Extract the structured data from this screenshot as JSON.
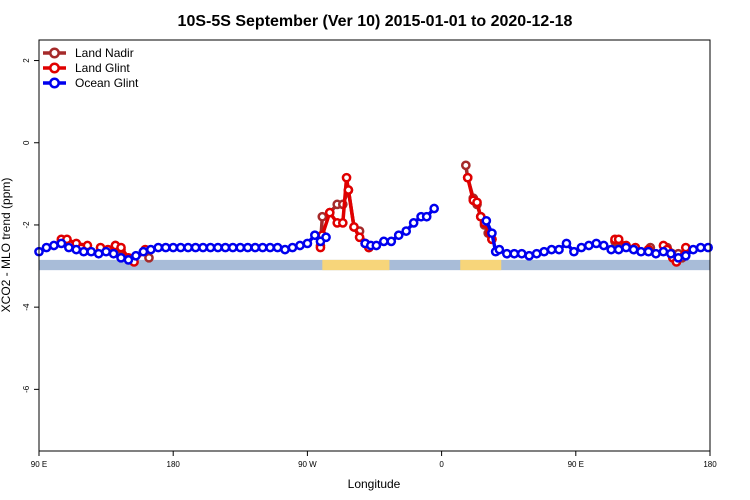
{
  "chart_data": {
    "type": "line",
    "title": "10S-5S September (Ver 10)   2015-01-01 to 2020-12-18",
    "xlabel": "Longitude",
    "ylabel": "XCO2 - MLO trend (ppm)",
    "xlim": [
      -90,
      270
    ],
    "ylim": [
      -7.5,
      2.5
    ],
    "x_ticks": [
      {
        "value": -90,
        "label": "90 E"
      },
      {
        "value": -18,
        "label": "180"
      },
      {
        "value": 54,
        "label": "90 W"
      },
      {
        "value": 126,
        "label": "0"
      },
      {
        "value": 198,
        "label": "90 E"
      },
      {
        "value": 270,
        "label": "180"
      }
    ],
    "y_ticks": [
      {
        "value": 2,
        "label": "2"
      },
      {
        "value": 0,
        "label": "0"
      },
      {
        "value": -2,
        "label": "-2"
      },
      {
        "value": -4,
        "label": "-4"
      },
      {
        "value": -6,
        "label": "-6"
      }
    ],
    "grid": false,
    "legend_position": "top-left",
    "land_strip": {
      "y_top": -2.85,
      "y_bottom": -3.1,
      "ocean_color": "#a8bcd8",
      "land_color": "#f7d57a",
      "land_spans": [
        [
          62,
          98
        ],
        [
          136,
          158
        ]
      ]
    },
    "series": [
      {
        "name": "Land Nadir",
        "color": "#a52a2a",
        "points": [
          [
            -78,
            -2.4
          ],
          [
            -76,
            -2.4
          ],
          [
            -49,
            -2.5
          ],
          [
            -46,
            -2.6
          ],
          [
            -31,
            -2.8
          ],
          [
            61,
            -2.5
          ],
          [
            62,
            -1.8
          ],
          [
            66,
            -1.7
          ],
          [
            70,
            -1.5
          ],
          [
            73,
            -1.5
          ],
          [
            76,
            -1.15
          ],
          [
            79,
            -2.05
          ],
          [
            82,
            -2.15
          ],
          [
            85,
            -2.45
          ],
          [
            87,
            -2.55
          ],
          [
            139,
            -0.55
          ],
          [
            140,
            -0.85
          ],
          [
            143,
            -1.35
          ],
          [
            145,
            -1.5
          ],
          [
            147,
            -1.8
          ],
          [
            149,
            -2.0
          ],
          [
            151,
            -2.2
          ],
          [
            153,
            -2.35
          ],
          [
            219,
            -2.4
          ],
          [
            221,
            -2.4
          ],
          [
            238,
            -2.55
          ],
          [
            247,
            -2.55
          ],
          [
            253,
            -2.7
          ],
          [
            255,
            -2.8
          ]
        ]
      },
      {
        "name": "Land Glint",
        "color": "#e00000",
        "points": [
          [
            -78,
            -2.35
          ],
          [
            -75,
            -2.35
          ],
          [
            -70,
            -2.45
          ],
          [
            -64,
            -2.5
          ],
          [
            -57,
            -2.55
          ],
          [
            -53,
            -2.6
          ],
          [
            -49,
            -2.5
          ],
          [
            -46,
            -2.55
          ],
          [
            -42,
            -2.8
          ],
          [
            -39,
            -2.9
          ],
          [
            -33,
            -2.6
          ],
          [
            61,
            -2.55
          ],
          [
            62,
            -2.25
          ],
          [
            66,
            -1.7
          ],
          [
            70,
            -1.95
          ],
          [
            73,
            -1.95
          ],
          [
            75,
            -0.85
          ],
          [
            76,
            -1.15
          ],
          [
            79,
            -2.05
          ],
          [
            82,
            -2.3
          ],
          [
            85,
            -2.45
          ],
          [
            87,
            -2.55
          ],
          [
            140,
            -0.85
          ],
          [
            143,
            -1.4
          ],
          [
            145,
            -1.45
          ],
          [
            147,
            -1.8
          ],
          [
            149,
            -1.95
          ],
          [
            152,
            -2.2
          ],
          [
            153,
            -2.35
          ],
          [
            219,
            -2.35
          ],
          [
            221,
            -2.35
          ],
          [
            225,
            -2.5
          ],
          [
            230,
            -2.55
          ],
          [
            237,
            -2.6
          ],
          [
            245,
            -2.5
          ],
          [
            247,
            -2.6
          ],
          [
            250,
            -2.8
          ],
          [
            252,
            -2.9
          ],
          [
            257,
            -2.55
          ]
        ]
      },
      {
        "name": "Ocean Glint",
        "color": "#0000ee",
        "points": [
          [
            -90,
            -2.65
          ],
          [
            -86,
            -2.55
          ],
          [
            -82,
            -2.5
          ],
          [
            -78,
            -2.45
          ],
          [
            -74,
            -2.55
          ],
          [
            -70,
            -2.6
          ],
          [
            -66,
            -2.65
          ],
          [
            -62,
            -2.65
          ],
          [
            -58,
            -2.7
          ],
          [
            -54,
            -2.65
          ],
          [
            -50,
            -2.7
          ],
          [
            -46,
            -2.8
          ],
          [
            -42,
            -2.85
          ],
          [
            -38,
            -2.75
          ],
          [
            -34,
            -2.65
          ],
          [
            -30,
            -2.6
          ],
          [
            -26,
            -2.55
          ],
          [
            -22,
            -2.55
          ],
          [
            -18,
            -2.55
          ],
          [
            -14,
            -2.55
          ],
          [
            -10,
            -2.55
          ],
          [
            -6,
            -2.55
          ],
          [
            -2,
            -2.55
          ],
          [
            2,
            -2.55
          ],
          [
            6,
            -2.55
          ],
          [
            10,
            -2.55
          ],
          [
            14,
            -2.55
          ],
          [
            18,
            -2.55
          ],
          [
            22,
            -2.55
          ],
          [
            26,
            -2.55
          ],
          [
            30,
            -2.55
          ],
          [
            34,
            -2.55
          ],
          [
            38,
            -2.55
          ],
          [
            42,
            -2.6
          ],
          [
            46,
            -2.55
          ],
          [
            50,
            -2.5
          ],
          [
            54,
            -2.45
          ],
          [
            58,
            -2.25
          ],
          [
            61,
            -2.4
          ],
          [
            64,
            -2.3
          ],
          [
            85,
            -2.45
          ],
          [
            88,
            -2.5
          ],
          [
            91,
            -2.5
          ],
          [
            95,
            -2.4
          ],
          [
            99,
            -2.4
          ],
          [
            103,
            -2.25
          ],
          [
            107,
            -2.15
          ],
          [
            111,
            -1.95
          ],
          [
            115,
            -1.8
          ],
          [
            118,
            -1.8
          ],
          [
            122,
            -1.6
          ],
          [
            150,
            -1.9
          ],
          [
            153,
            -2.2
          ],
          [
            155,
            -2.65
          ],
          [
            157,
            -2.6
          ],
          [
            161,
            -2.7
          ],
          [
            165,
            -2.7
          ],
          [
            169,
            -2.7
          ],
          [
            173,
            -2.75
          ],
          [
            177,
            -2.7
          ],
          [
            181,
            -2.65
          ],
          [
            185,
            -2.6
          ],
          [
            189,
            -2.6
          ],
          [
            193,
            -2.45
          ],
          [
            197,
            -2.65
          ],
          [
            201,
            -2.55
          ],
          [
            205,
            -2.5
          ],
          [
            209,
            -2.45
          ],
          [
            213,
            -2.5
          ],
          [
            217,
            -2.6
          ],
          [
            221,
            -2.6
          ],
          [
            225,
            -2.55
          ],
          [
            229,
            -2.6
          ],
          [
            233,
            -2.65
          ],
          [
            237,
            -2.65
          ],
          [
            241,
            -2.7
          ],
          [
            245,
            -2.65
          ],
          [
            249,
            -2.7
          ],
          [
            253,
            -2.8
          ],
          [
            257,
            -2.75
          ],
          [
            261,
            -2.6
          ],
          [
            265,
            -2.55
          ],
          [
            269,
            -2.55
          ]
        ]
      }
    ]
  }
}
